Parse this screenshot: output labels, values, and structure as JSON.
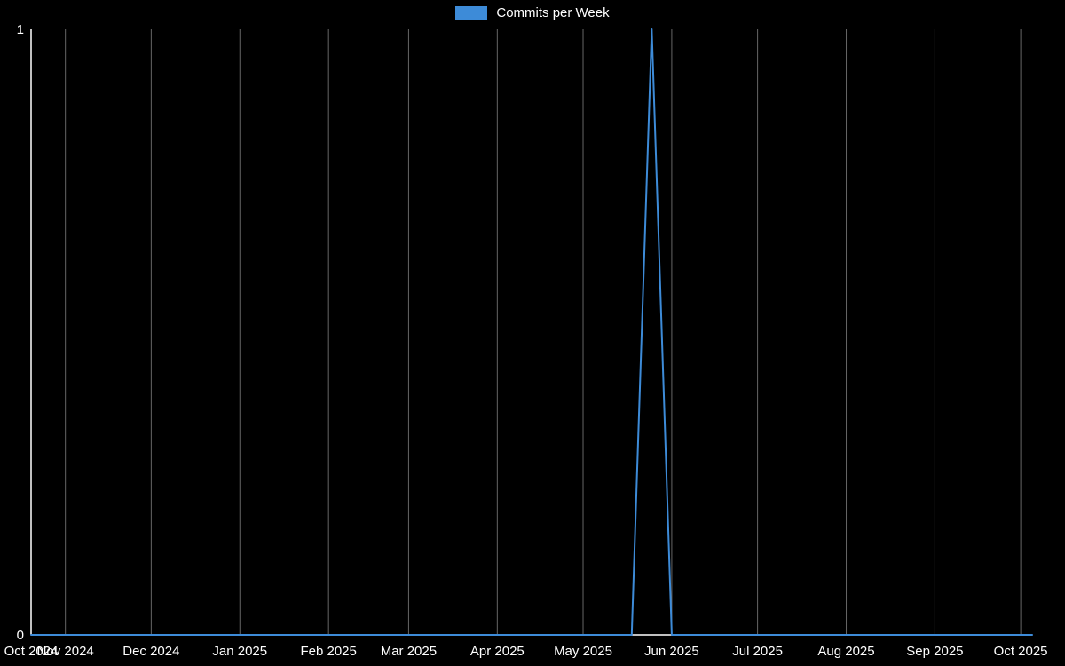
{
  "page": {
    "background": "#000000"
  },
  "chart_data": {
    "type": "line",
    "title": "",
    "legend": [
      {
        "label": "Commits per Week",
        "color": "#3d8bd8"
      }
    ],
    "grid": {
      "vertical": true,
      "horizontal": false,
      "color": "#666666"
    },
    "axis_color": "#ffffff",
    "text_color": "#ffffff",
    "x_axis": {
      "start": "2024-10-20",
      "end": "2025-10-05",
      "ticks": [
        {
          "label": "Oct 2024",
          "date": "2024-10-20"
        },
        {
          "label": "Nov 2024",
          "date": "2024-11-01"
        },
        {
          "label": "Dec 2024",
          "date": "2024-12-01"
        },
        {
          "label": "Jan 2025",
          "date": "2025-01-01"
        },
        {
          "label": "Feb 2025",
          "date": "2025-02-01"
        },
        {
          "label": "Mar 2025",
          "date": "2025-03-01"
        },
        {
          "label": "Apr 2025",
          "date": "2025-04-01"
        },
        {
          "label": "May 2025",
          "date": "2025-05-01"
        },
        {
          "label": "Jun 2025",
          "date": "2025-06-01"
        },
        {
          "label": "Jul 2025",
          "date": "2025-07-01"
        },
        {
          "label": "Aug 2025",
          "date": "2025-08-01"
        },
        {
          "label": "Sep 2025",
          "date": "2025-09-01"
        },
        {
          "label": "Oct 2025",
          "date": "2025-10-01"
        }
      ]
    },
    "y_axis": {
      "min": 0,
      "max": 1,
      "ticks": [
        {
          "label": "1",
          "value": 1
        },
        {
          "label": "0",
          "value": 0
        }
      ]
    },
    "series": [
      {
        "name": "Commits per Week",
        "color": "#3d8bd8",
        "points": [
          {
            "date": "2024-10-20",
            "value": 0
          },
          {
            "date": "2025-05-18",
            "value": 0
          },
          {
            "date": "2025-05-25",
            "value": 1
          },
          {
            "date": "2025-06-01",
            "value": 0
          },
          {
            "date": "2025-10-05",
            "value": 0
          }
        ]
      }
    ]
  }
}
